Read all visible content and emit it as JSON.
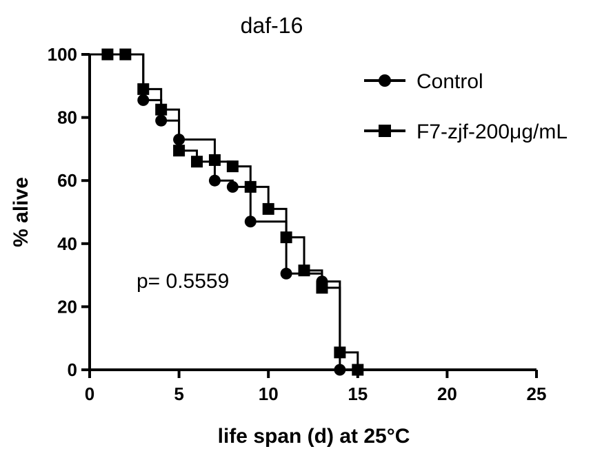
{
  "chart_data": {
    "type": "line",
    "title": "daf-16",
    "xlabel": "life span (d) at 25°C",
    "ylabel": "% alive",
    "xlim": [
      0,
      25
    ],
    "ylim": [
      0,
      100
    ],
    "xticks": [
      0,
      5,
      10,
      15,
      20,
      25
    ],
    "yticks": [
      0,
      20,
      40,
      60,
      80,
      100
    ],
    "grid": false,
    "legend_position": "top-right",
    "annotation": "p= 0.5559",
    "series": [
      {
        "name": "Control",
        "marker": "circle",
        "steps": [
          [
            0,
            100
          ],
          [
            3,
            85.5
          ],
          [
            4,
            79
          ],
          [
            5,
            73
          ],
          [
            7,
            60
          ],
          [
            8,
            58
          ],
          [
            9,
            47
          ],
          [
            11,
            30.5
          ],
          [
            13,
            28
          ],
          [
            14,
            0
          ]
        ],
        "points": [
          [
            1,
            100
          ],
          [
            2,
            100
          ],
          [
            3,
            85.5
          ],
          [
            4,
            79
          ],
          [
            5,
            73
          ],
          [
            7,
            60
          ],
          [
            8,
            58
          ],
          [
            9,
            47
          ],
          [
            11,
            30.5
          ],
          [
            13,
            28
          ],
          [
            14,
            0
          ]
        ]
      },
      {
        "name": "F7-zjf-200μg/mL",
        "marker": "square",
        "steps": [
          [
            0,
            100
          ],
          [
            3,
            89
          ],
          [
            4,
            82.5
          ],
          [
            5,
            69.5
          ],
          [
            6,
            66
          ],
          [
            8,
            64.5
          ],
          [
            9,
            58
          ],
          [
            10,
            51
          ],
          [
            11,
            42
          ],
          [
            12,
            31.5
          ],
          [
            13,
            26
          ],
          [
            14,
            5.5
          ],
          [
            15,
            0
          ]
        ],
        "points": [
          [
            1,
            100
          ],
          [
            2,
            100
          ],
          [
            3,
            89
          ],
          [
            4,
            82.5
          ],
          [
            5,
            69.5
          ],
          [
            6,
            66
          ],
          [
            7,
            66.5
          ],
          [
            8,
            64.5
          ],
          [
            9,
            58
          ],
          [
            10,
            51
          ],
          [
            11,
            42
          ],
          [
            12,
            31.5
          ],
          [
            13,
            26
          ],
          [
            14,
            5.5
          ],
          [
            15,
            0
          ]
        ]
      }
    ]
  }
}
